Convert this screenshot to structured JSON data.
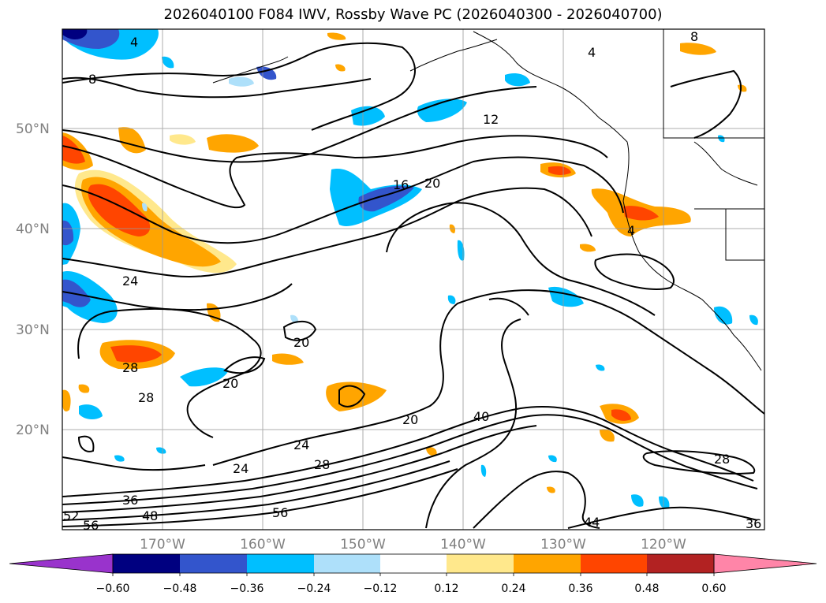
{
  "title": "2026040100 F084 IWV, Rossby Wave PC (2026040300 - 2026040700)",
  "map": {
    "projection": "Plate Carree",
    "lon_range": [
      -180,
      -110
    ],
    "lat_range": [
      10,
      60
    ],
    "lat_labels": [
      "50°N",
      "40°N",
      "30°N",
      "20°N"
    ],
    "lon_labels": [
      "170°W",
      "160°W",
      "150°W",
      "140°W",
      "130°W",
      "120°W"
    ],
    "contour_labels": [
      "4",
      "8",
      "12",
      "16",
      "20",
      "24",
      "20",
      "20",
      "24",
      "28",
      "28",
      "28",
      "24",
      "36",
      "48",
      "52",
      "56",
      "56",
      "40",
      "44",
      "36",
      "28",
      "8",
      "4",
      "4",
      "20"
    ]
  },
  "colorbar": {
    "ticks": [
      "−0.60",
      "−0.48",
      "−0.36",
      "−0.24",
      "−0.12",
      "0.12",
      "0.24",
      "0.36",
      "0.48",
      "0.60"
    ],
    "colors": [
      "#9933cc",
      "#000080",
      "#3355cc",
      "#00bfff",
      "#aee0fa",
      "#ffffff",
      "#ffe88c",
      "#ffa500",
      "#ff4500",
      "#b22222",
      "#ff85a8"
    ]
  },
  "chart_data": {
    "type": "heatmap",
    "title": "2026040100 F084 IWV, Rossby Wave PC (2026040300 - 2026040700)",
    "filled_field_levels": [
      -0.6,
      -0.48,
      -0.36,
      -0.24,
      -0.12,
      0.12,
      0.24,
      0.36,
      0.48,
      0.6
    ],
    "contour_field_labels": [
      4,
      8,
      12,
      16,
      20,
      24,
      28,
      36,
      40,
      44,
      48,
      52,
      56
    ],
    "x_range_lon": [
      -180,
      -110
    ],
    "y_range_lat": [
      10,
      60
    ]
  }
}
